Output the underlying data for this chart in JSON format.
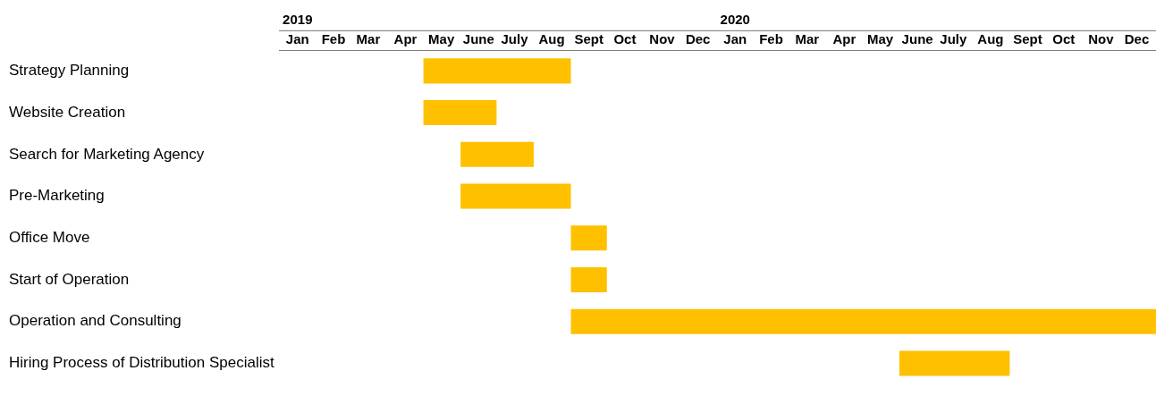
{
  "chart_data": {
    "type": "bar",
    "orientation": "horizontal",
    "color": "#ffc000",
    "categories": [
      "Strategy Planning",
      "Website Creation",
      "Search for Marketing Agency",
      "Pre-Marketing",
      "Office Move",
      "Start of Operation",
      "Operation and Consulting",
      "Hiring Process of Distribution Specialist"
    ],
    "base": [
      18017,
      18017,
      18048,
      18048,
      18140,
      18140,
      18140,
      18414
    ],
    "values": [
      123,
      61,
      61,
      92,
      30,
      30,
      488,
      92
    ],
    "xlim": [
      "2019-01-01",
      "2021-01-01"
    ],
    "xticks": [
      {
        "value": "2019-01-16",
        "label": "Jan"
      },
      {
        "value": "2019-02-15",
        "label": "Feb"
      },
      {
        "value": "2019-03-16",
        "label": "Mar"
      },
      {
        "value": "2019-04-16",
        "label": "Apr"
      },
      {
        "value": "2019-05-16",
        "label": "May"
      },
      {
        "value": "2019-06-16",
        "label": "June"
      },
      {
        "value": "2019-07-16",
        "label": "July"
      },
      {
        "value": "2019-08-16",
        "label": "Aug"
      },
      {
        "value": "2019-09-16",
        "label": "Sept"
      },
      {
        "value": "2019-10-16",
        "label": "Oct"
      },
      {
        "value": "2019-11-16",
        "label": "Nov"
      },
      {
        "value": "2019-12-16",
        "label": "Dec"
      },
      {
        "value": "2020-01-16",
        "label": "Jan"
      },
      {
        "value": "2020-02-15",
        "label": "Feb"
      },
      {
        "value": "2020-03-16",
        "label": "Mar"
      },
      {
        "value": "2020-04-16",
        "label": "Apr"
      },
      {
        "value": "2020-05-16",
        "label": "May"
      },
      {
        "value": "2020-06-16",
        "label": "June"
      },
      {
        "value": "2020-07-16",
        "label": "July"
      },
      {
        "value": "2020-08-16",
        "label": "Aug"
      },
      {
        "value": "2020-09-16",
        "label": "Sept"
      },
      {
        "value": "2020-10-16",
        "label": "Oct"
      },
      {
        "value": "2020-11-16",
        "label": "Nov"
      },
      {
        "value": "2020-12-16",
        "label": "Dec"
      }
    ],
    "x2lim": [
      "2019-01-01",
      "2021-01-01"
    ],
    "x2ticks": [
      {
        "value": "2019-01-16",
        "label": "2019"
      },
      {
        "value": "2020-01-16",
        "label": "2020"
      }
    ],
    "grid": false,
    "legend": false
  }
}
